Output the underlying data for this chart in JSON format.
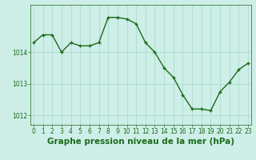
{
  "hours": [
    0,
    1,
    2,
    3,
    4,
    5,
    6,
    7,
    8,
    9,
    10,
    11,
    12,
    13,
    14,
    15,
    16,
    17,
    18,
    19,
    20,
    21,
    22,
    23
  ],
  "pressure": [
    1014.3,
    1014.55,
    1014.55,
    1014.0,
    1014.3,
    1014.2,
    1014.2,
    1014.3,
    1015.1,
    1015.1,
    1015.05,
    1014.9,
    1014.3,
    1014.0,
    1013.5,
    1013.2,
    1012.65,
    1012.2,
    1012.2,
    1012.15,
    1012.75,
    1013.05,
    1013.45,
    1013.65
  ],
  "line_color": "#1a6b1a",
  "marker": "+",
  "marker_color": "#1a6b1a",
  "bg_color": "#ceeee8",
  "grid_color": "#aaddcc",
  "label_color": "#1a6b1a",
  "xlabel": "Graphe pression niveau de la mer (hPa)",
  "ylim": [
    1011.7,
    1015.5
  ],
  "yticks": [
    1012,
    1013,
    1014
  ],
  "xticks": [
    0,
    1,
    2,
    3,
    4,
    5,
    6,
    7,
    8,
    9,
    10,
    11,
    12,
    13,
    14,
    15,
    16,
    17,
    18,
    19,
    20,
    21,
    22,
    23
  ],
  "tick_fontsize": 5.5,
  "xlabel_fontsize": 7.5,
  "linewidth": 1.0,
  "markersize": 3.5
}
